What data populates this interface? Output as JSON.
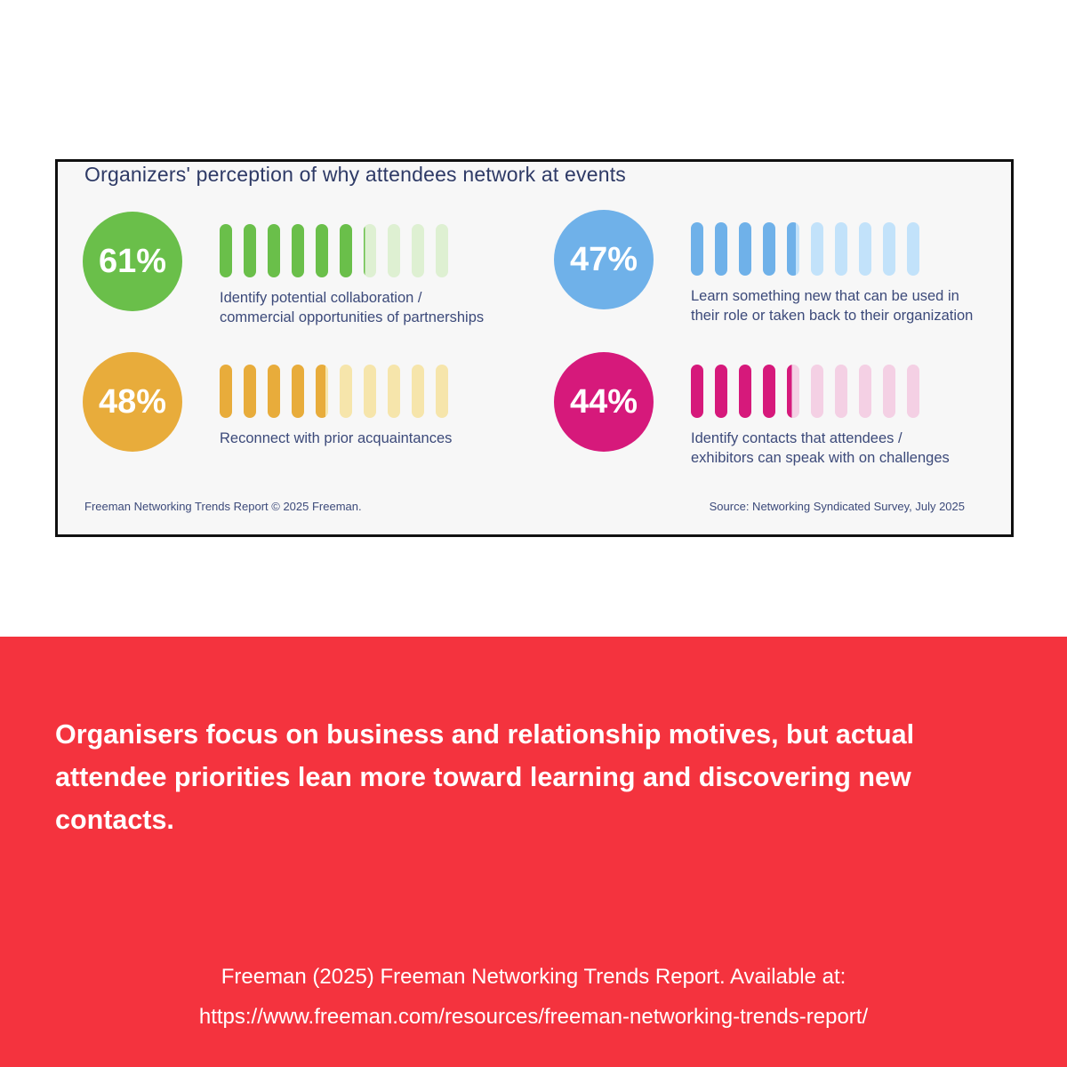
{
  "card": {
    "title": "Organizers' perception of why attendees network at events",
    "bar_count": 10,
    "stats": [
      {
        "pct": "61%",
        "value": 61,
        "color": "#6abf4a",
        "light": "#def0d2",
        "label": "Identify potential collaboration /\ncommercial opportunities of partnerships"
      },
      {
        "pct": "47%",
        "value": 47,
        "color": "#6fb1e9",
        "light": "#c2e2fa",
        "label": "Learn something new that can be used in\ntheir role or taken back to their organization"
      },
      {
        "pct": "48%",
        "value": 48,
        "color": "#e8ac3b",
        "light": "#f6e5ab",
        "label": "Reconnect with prior acquaintances"
      },
      {
        "pct": "44%",
        "value": 44,
        "color": "#d6197b",
        "light": "#f4d0e4",
        "label": "Identify contacts that attendees /\nexhibitors can speak with on challenges"
      }
    ],
    "footer_left": "Freeman Networking Trends Report © 2025 Freeman.",
    "footer_right": "Source: Networking Syndicated Survey, July 2025"
  },
  "banner": {
    "background": "#f4333e",
    "statement": "Organisers focus on business and relationship motives, but actual attendee priorities lean more toward learning and discovering new contacts.",
    "citation_line1": "Freeman (2025) Freeman Networking Trends Report. Available at:",
    "citation_line2": "https://www.freeman.com/resources/freeman-networking-trends-report/"
  },
  "chart_data": {
    "type": "bar",
    "title": "Organizers' perception of why attendees network at events",
    "categories": [
      "Identify potential collaboration / commercial opportunities of partnerships",
      "Learn something new that can be used in their role or taken back to their organization",
      "Reconnect with prior acquaintances",
      "Identify contacts that attendees / exhibitors can speak with on challenges"
    ],
    "values": [
      61,
      47,
      48,
      44
    ],
    "unit": "%",
    "ylim": [
      0,
      100
    ],
    "segments_per_bar": 10,
    "segment_value": 10,
    "series_colors": [
      "#6abf4a",
      "#6fb1e9",
      "#e8ac3b",
      "#d6197b"
    ],
    "legend_position": "none",
    "grid": false,
    "source": "Networking Syndicated Survey, July 2025"
  }
}
